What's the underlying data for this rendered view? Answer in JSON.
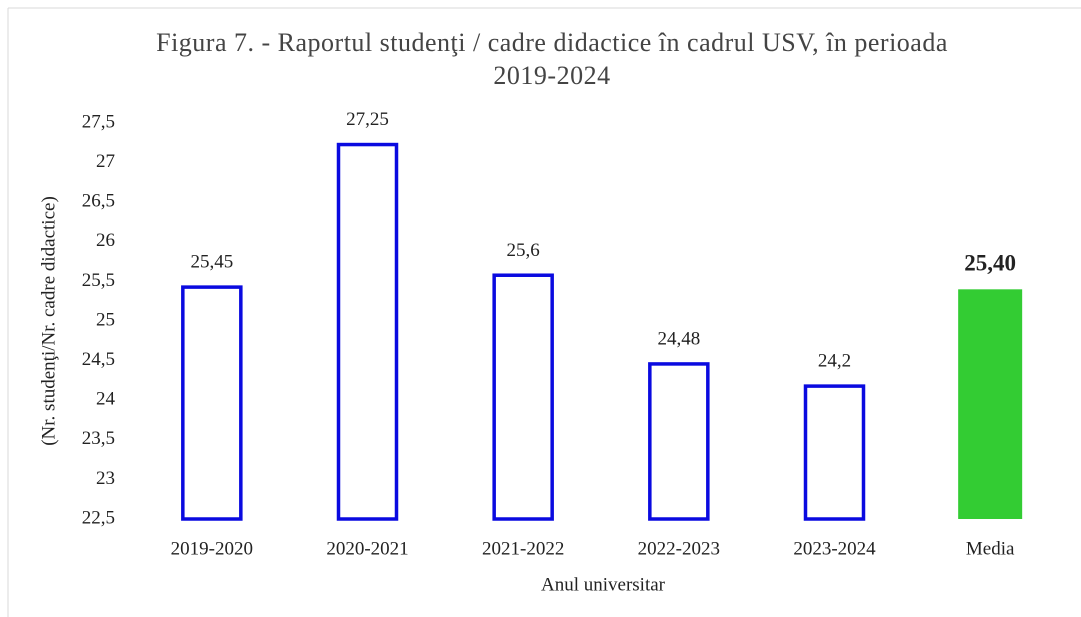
{
  "chart_data": {
    "type": "bar",
    "title": "Figura 7. - Raportul studenţi / cadre didactice în cadrul USV, în perioada 2019-2024",
    "x_label": "Anul universitar",
    "y_label": "(Nr. studenţi/Nr. cadre didactice)",
    "categories": [
      "2019-2020",
      "2020-2021",
      "2021-2022",
      "2022-2023",
      "2023-2024",
      "Media"
    ],
    "values": [
      25.45,
      27.25,
      25.6,
      24.48,
      24.2,
      25.4
    ],
    "value_labels": [
      "25,45",
      "27,25",
      "25,6",
      "24,48",
      "24,2",
      "25,40"
    ],
    "colors": [
      "#0a0ae0",
      "#0a0ae0",
      "#0a0ae0",
      "#0a0ae0",
      "#0a0ae0",
      "#33cc33"
    ],
    "styles": [
      "outline",
      "outline",
      "outline",
      "outline",
      "outline",
      "filled"
    ],
    "ylim": [
      22.5,
      27.5
    ],
    "yticks": [
      {
        "value": 22.5,
        "label": "22,5"
      },
      23,
      {
        "value": 23.5,
        "label": "23,5"
      },
      24,
      {
        "value": 24.5,
        "label": "24,5"
      },
      25,
      {
        "value": 25.5,
        "label": "25,5"
      },
      26,
      {
        "value": 26.5,
        "label": "26,5"
      },
      27,
      {
        "value": 27.5,
        "label": "27,5"
      }
    ],
    "grid": false
  }
}
